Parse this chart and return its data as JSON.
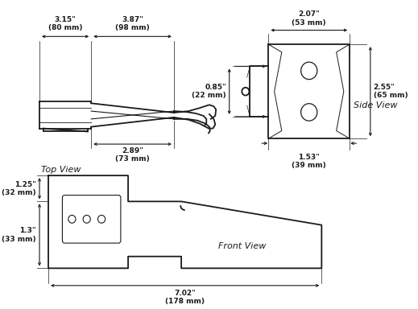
{
  "bg_color": "#ffffff",
  "lc": "#1a1a1a",
  "font_family": "DejaVu Sans",
  "top_view": {
    "label": "Top View",
    "dim_315": "3.15\"\n(80 mm)",
    "dim_387": "3.87\"\n(98 mm)",
    "dim_289": "2.89\"\n(73 mm)"
  },
  "side_view": {
    "label": "Side View",
    "dim_207": "2.07\"\n(53 mm)",
    "dim_085": "0.85\"\n(22 mm)",
    "dim_255": "2.55\"\n(65 mm)",
    "dim_153": "1.53\"\n(39 mm)"
  },
  "front_view": {
    "label": "Front View",
    "dim_125": "1.25\"\n(32 mm)",
    "dim_13": "1.3\"\n(33 mm)",
    "dim_702": "7.02\"\n(178 mm)"
  }
}
